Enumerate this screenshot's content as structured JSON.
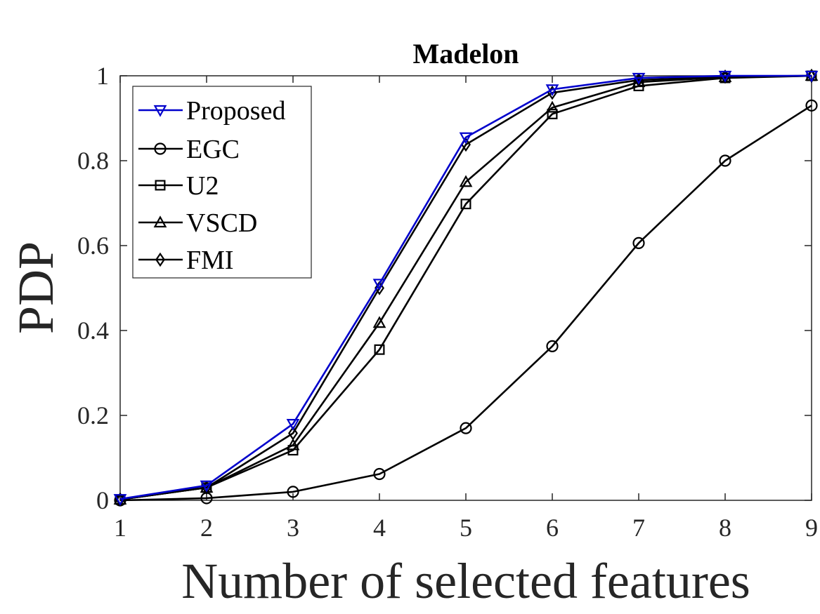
{
  "chart_data": {
    "type": "line",
    "title": "Madelon",
    "xlabel": "Number of selected features",
    "ylabel": "PDP",
    "x": [
      1,
      2,
      3,
      4,
      5,
      6,
      7,
      8,
      9
    ],
    "xlim": [
      1,
      9
    ],
    "ylim": [
      0,
      1
    ],
    "xticks": [
      "1",
      "2",
      "3",
      "4",
      "5",
      "6",
      "7",
      "8",
      "9"
    ],
    "yticks": [
      "0",
      "0.2",
      "0.4",
      "0.6",
      "0.8",
      "1"
    ],
    "grid": false,
    "legend_position": "top-left",
    "series": [
      {
        "name": "Proposed",
        "marker": "triangle-down",
        "color": "#0000cc",
        "values": [
          0.003,
          0.035,
          0.18,
          0.51,
          0.855,
          0.968,
          0.995,
          1.0,
          1.0
        ]
      },
      {
        "name": "EGC",
        "marker": "circle",
        "color": "#000000",
        "values": [
          0.0,
          0.005,
          0.02,
          0.062,
          0.17,
          0.363,
          0.606,
          0.8,
          0.93
        ]
      },
      {
        "name": "U2",
        "marker": "square",
        "color": "#000000",
        "values": [
          0.002,
          0.03,
          0.118,
          0.355,
          0.698,
          0.91,
          0.976,
          0.995,
          1.0
        ]
      },
      {
        "name": "VSCD",
        "marker": "triangle-up",
        "color": "#000000",
        "values": [
          0.002,
          0.03,
          0.13,
          0.418,
          0.75,
          0.925,
          0.985,
          0.997,
          1.0
        ]
      },
      {
        "name": "FMI",
        "marker": "diamond",
        "color": "#000000",
        "values": [
          0.002,
          0.03,
          0.158,
          0.5,
          0.838,
          0.96,
          0.99,
          0.998,
          1.0
        ]
      }
    ]
  }
}
